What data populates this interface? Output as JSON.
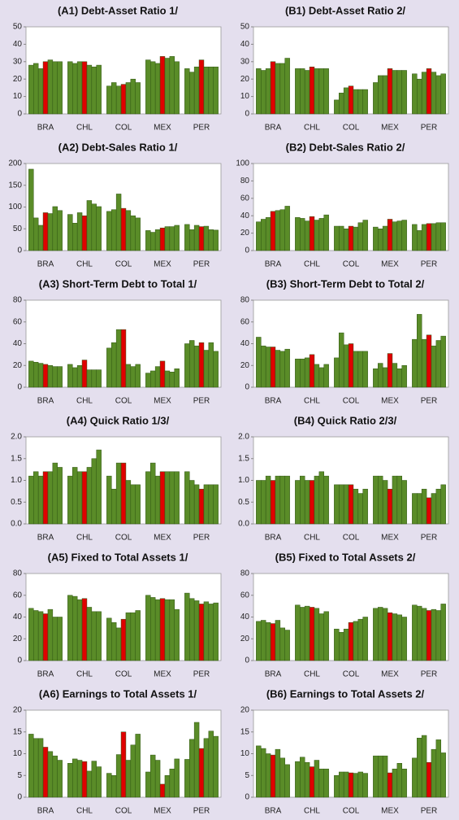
{
  "chart_data": [
    {
      "type": "bar",
      "title": "(A1) Debt-Asset Ratio 1/",
      "categories": [
        "BRA",
        "CHL",
        "COL",
        "MEX",
        "PER"
      ],
      "groups": [
        [
          28,
          29,
          26,
          30,
          31,
          30,
          30
        ],
        [
          30,
          29,
          30,
          30,
          28,
          27,
          28
        ],
        [
          16,
          18,
          16,
          17,
          18,
          20,
          18
        ],
        [
          31,
          30,
          29,
          33,
          32,
          33,
          30
        ],
        [
          26,
          24,
          27,
          31,
          27,
          27,
          27
        ]
      ],
      "bar_colors": [
        "#5a8c28",
        "#5a8c28",
        "#5a8c28",
        "#e00000",
        "#5a8c28",
        "#5a8c28",
        "#5a8c28"
      ],
      "ylim": [
        0,
        50
      ],
      "yticks": [
        0,
        10,
        20,
        30,
        40,
        50
      ]
    },
    {
      "type": "bar",
      "title": "(B1) Debt-Asset Ratio 2/",
      "categories": [
        "BRA",
        "CHL",
        "COL",
        "MEX",
        "PER"
      ],
      "groups": [
        [
          26,
          25,
          26,
          30,
          29,
          29,
          32
        ],
        [
          26,
          26,
          25,
          27,
          26,
          26,
          26
        ],
        [
          8,
          12,
          15,
          16,
          14,
          14,
          14
        ],
        [
          18,
          22,
          22,
          26,
          25,
          25,
          25
        ],
        [
          23,
          20,
          24,
          26,
          24,
          22,
          23
        ]
      ],
      "bar_colors": [
        "#5a8c28",
        "#5a8c28",
        "#5a8c28",
        "#e00000",
        "#5a8c28",
        "#5a8c28",
        "#5a8c28"
      ],
      "ylim": [
        0,
        50
      ],
      "yticks": [
        0,
        10,
        20,
        30,
        40,
        50
      ]
    },
    {
      "type": "bar",
      "title": "(A2) Debt-Sales Ratio 1/",
      "categories": [
        "BRA",
        "CHL",
        "COL",
        "MEX",
        "PER"
      ],
      "groups": [
        [
          187,
          75,
          58,
          87,
          85,
          101,
          92
        ],
        [
          83,
          63,
          87,
          80,
          115,
          107,
          101
        ],
        [
          90,
          94,
          130,
          97,
          92,
          80,
          75
        ],
        [
          46,
          42,
          48,
          52,
          55,
          55,
          58
        ],
        [
          60,
          48,
          58,
          55,
          56,
          48,
          47
        ]
      ],
      "bar_colors": [
        "#5a8c28",
        "#5a8c28",
        "#5a8c28",
        "#e00000",
        "#5a8c28",
        "#5a8c28",
        "#5a8c28"
      ],
      "ylim": [
        0,
        200
      ],
      "yticks": [
        0,
        50,
        100,
        150,
        200
      ]
    },
    {
      "type": "bar",
      "title": "(B2) Debt-Sales Ratio 2/",
      "categories": [
        "BRA",
        "CHL",
        "COL",
        "MEX",
        "PER"
      ],
      "groups": [
        [
          33,
          36,
          38,
          45,
          46,
          47,
          51
        ],
        [
          38,
          37,
          34,
          39,
          35,
          37,
          41
        ],
        [
          28,
          28,
          25,
          28,
          27,
          32,
          35
        ],
        [
          27,
          25,
          28,
          36,
          33,
          34,
          35
        ],
        [
          30,
          23,
          30,
          31,
          31,
          32,
          32
        ]
      ],
      "bar_colors": [
        "#5a8c28",
        "#5a8c28",
        "#5a8c28",
        "#e00000",
        "#5a8c28",
        "#5a8c28",
        "#5a8c28"
      ],
      "ylim": [
        0,
        100
      ],
      "yticks": [
        0,
        20,
        40,
        60,
        80,
        100
      ]
    },
    {
      "type": "bar",
      "title": "(A3) Short-Term Debt to Total 1/",
      "categories": [
        "BRA",
        "CHL",
        "COL",
        "MEX",
        "PER"
      ],
      "groups": [
        [
          24,
          23,
          22,
          21,
          20,
          19,
          19
        ],
        [
          21,
          18,
          20,
          25,
          16,
          16,
          16
        ],
        [
          36,
          41,
          53,
          53,
          21,
          19,
          21
        ],
        [
          13,
          15,
          19,
          24,
          15,
          14,
          17
        ],
        [
          40,
          43,
          38,
          41,
          34,
          41,
          33
        ]
      ],
      "bar_colors": [
        "#5a8c28",
        "#5a8c28",
        "#5a8c28",
        "#e00000",
        "#5a8c28",
        "#5a8c28",
        "#5a8c28"
      ],
      "ylim": [
        0,
        80
      ],
      "yticks": [
        0,
        20,
        40,
        60,
        80
      ]
    },
    {
      "type": "bar",
      "title": "(B3) Short-Term Debt to Total 2/",
      "categories": [
        "BRA",
        "CHL",
        "COL",
        "MEX",
        "PER"
      ],
      "groups": [
        [
          46,
          38,
          37,
          37,
          34,
          33,
          35
        ],
        [
          26,
          26,
          27,
          30,
          21,
          18,
          21
        ],
        [
          27,
          50,
          39,
          40,
          33,
          33,
          33
        ],
        [
          17,
          22,
          18,
          31,
          22,
          17,
          20
        ],
        [
          44,
          67,
          44,
          48,
          38,
          43,
          47
        ]
      ],
      "bar_colors": [
        "#5a8c28",
        "#5a8c28",
        "#5a8c28",
        "#e00000",
        "#5a8c28",
        "#5a8c28",
        "#5a8c28"
      ],
      "ylim": [
        0,
        80
      ],
      "yticks": [
        0,
        20,
        40,
        60,
        80
      ]
    },
    {
      "type": "bar",
      "title": "(A4) Quick Ratio 1/3/",
      "categories": [
        "BRA",
        "CHL",
        "COL",
        "MEX",
        "PER"
      ],
      "groups": [
        [
          1.1,
          1.2,
          1.1,
          1.2,
          1.2,
          1.4,
          1.3
        ],
        [
          1.1,
          1.3,
          1.2,
          1.2,
          1.3,
          1.5,
          1.7
        ],
        [
          1.1,
          0.8,
          1.4,
          1.4,
          1.0,
          0.9,
          0.9
        ],
        [
          1.2,
          1.4,
          1.1,
          1.2,
          1.2,
          1.2,
          1.2
        ],
        [
          1.2,
          1.0,
          0.9,
          0.8,
          0.9,
          0.9,
          0.9
        ]
      ],
      "bar_colors": [
        "#5a8c28",
        "#5a8c28",
        "#5a8c28",
        "#e00000",
        "#5a8c28",
        "#5a8c28",
        "#5a8c28"
      ],
      "ylim": [
        0,
        2
      ],
      "yticks": [
        {
          "value": 0,
          "label": "0.0"
        },
        {
          "value": 0.5,
          "label": "0.5"
        },
        {
          "value": 1,
          "label": "1.0"
        },
        {
          "value": 1.5,
          "label": "1.5"
        },
        {
          "value": 2,
          "label": "2.0"
        }
      ]
    },
    {
      "type": "bar",
      "title": "(B4) Quick Ratio 2/3/",
      "categories": [
        "BRA",
        "CHL",
        "COL",
        "MEX",
        "PER"
      ],
      "groups": [
        [
          1.0,
          1.0,
          1.1,
          1.0,
          1.1,
          1.1,
          1.1
        ],
        [
          1.0,
          1.1,
          1.0,
          1.0,
          1.1,
          1.2,
          1.1
        ],
        [
          0.9,
          0.9,
          0.9,
          0.9,
          0.8,
          0.7,
          0.8
        ],
        [
          1.1,
          1.1,
          1.0,
          0.8,
          1.1,
          1.1,
          1.0
        ],
        [
          0.7,
          0.7,
          0.8,
          0.6,
          0.7,
          0.8,
          0.9
        ]
      ],
      "bar_colors": [
        "#5a8c28",
        "#5a8c28",
        "#5a8c28",
        "#e00000",
        "#5a8c28",
        "#5a8c28",
        "#5a8c28"
      ],
      "ylim": [
        0,
        2
      ],
      "yticks": [
        {
          "value": 0,
          "label": "0.0"
        },
        {
          "value": 0.5,
          "label": "0.5"
        },
        {
          "value": 1,
          "label": "1.0"
        },
        {
          "value": 1.5,
          "label": "1.5"
        },
        {
          "value": 2,
          "label": "2.0"
        }
      ]
    },
    {
      "type": "bar",
      "title": "(A5) Fixed to Total Assets 1/",
      "categories": [
        "BRA",
        "CHL",
        "COL",
        "MEX",
        "PER"
      ],
      "groups": [
        [
          48,
          46,
          45,
          43,
          47,
          40,
          40
        ],
        [
          60,
          59,
          56,
          57,
          49,
          45,
          45
        ],
        [
          39,
          35,
          30,
          38,
          44,
          44,
          46
        ],
        [
          60,
          58,
          56,
          57,
          56,
          56,
          47
        ],
        [
          62,
          57,
          55,
          52,
          54,
          52,
          53
        ]
      ],
      "bar_colors": [
        "#5a8c28",
        "#5a8c28",
        "#5a8c28",
        "#e00000",
        "#5a8c28",
        "#5a8c28",
        "#5a8c28"
      ],
      "ylim": [
        0,
        80
      ],
      "yticks": [
        0,
        20,
        40,
        60,
        80
      ]
    },
    {
      "type": "bar",
      "title": "(B5) Fixed to Total Assets 2/",
      "categories": [
        "BRA",
        "CHL",
        "COL",
        "MEX",
        "PER"
      ],
      "groups": [
        [
          36,
          37,
          35,
          34,
          37,
          30,
          28
        ],
        [
          51,
          49,
          50,
          49,
          48,
          43,
          45
        ],
        [
          29,
          26,
          29,
          35,
          36,
          38,
          40
        ],
        [
          48,
          49,
          48,
          44,
          43,
          42,
          40
        ],
        [
          51,
          50,
          48,
          46,
          47,
          46,
          52
        ]
      ],
      "bar_colors": [
        "#5a8c28",
        "#5a8c28",
        "#5a8c28",
        "#e00000",
        "#5a8c28",
        "#5a8c28",
        "#5a8c28"
      ],
      "ylim": [
        0,
        80
      ],
      "yticks": [
        0,
        20,
        40,
        60,
        80
      ]
    },
    {
      "type": "bar",
      "title": "(A6) Earnings to Total Assets 1/",
      "categories": [
        "BRA",
        "CHL",
        "COL",
        "MEX",
        "PER"
      ],
      "groups": [
        [
          14.5,
          13.5,
          13.5,
          11.5,
          10.5,
          9.5,
          8.5
        ],
        [
          7.8,
          8.8,
          8.5,
          8.2,
          6,
          8.3,
          7
        ],
        [
          5.5,
          5,
          9.8,
          15,
          8.5,
          12,
          14.5
        ],
        [
          5.8,
          9.7,
          8.5,
          3,
          5,
          6.5,
          8.8
        ],
        [
          8.7,
          13.3,
          17.2,
          11.2,
          13.5,
          15.2,
          14
        ]
      ],
      "bar_colors": [
        "#5a8c28",
        "#5a8c28",
        "#5a8c28",
        "#e00000",
        "#5a8c28",
        "#5a8c28",
        "#5a8c28"
      ],
      "ylim": [
        0,
        20
      ],
      "yticks": [
        0,
        5,
        10,
        15,
        20
      ]
    },
    {
      "type": "bar",
      "title": "(B6) Earnings to Total Assets 2/",
      "categories": [
        "BRA",
        "CHL",
        "COL",
        "MEX",
        "PER"
      ],
      "groups": [
        [
          11.8,
          11.2,
          10,
          9.7,
          11,
          9,
          7.5
        ],
        [
          8.2,
          9.2,
          8,
          7,
          8.5,
          6.5,
          6.5
        ],
        [
          5,
          5.8,
          5.8,
          5.6,
          5.5,
          5.8,
          5.5
        ],
        [
          9.5,
          9.5,
          9.5,
          5.6,
          6.5,
          7.8,
          6.5
        ],
        [
          9,
          13.6,
          14.2,
          8,
          11,
          13.2,
          10.2
        ]
      ],
      "bar_colors": [
        "#5a8c28",
        "#5a8c28",
        "#5a8c28",
        "#e00000",
        "#5a8c28",
        "#5a8c28",
        "#5a8c28"
      ],
      "ylim": [
        0,
        20
      ],
      "yticks": [
        0,
        5,
        10,
        15,
        20
      ]
    }
  ]
}
